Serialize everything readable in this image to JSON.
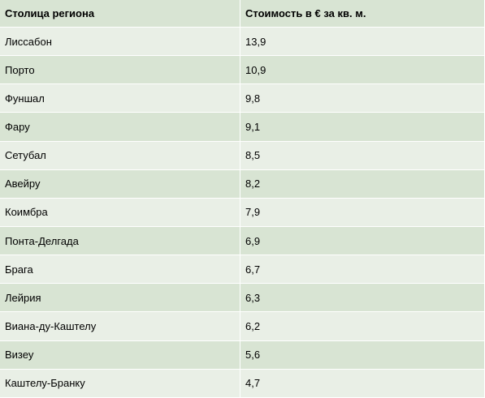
{
  "table": {
    "headers": [
      "Столица региона",
      "Стоимость в € за кв. м."
    ],
    "rows": [
      {
        "city": "Лиссабон",
        "price": "13,9"
      },
      {
        "city": "Порто",
        "price": "10,9"
      },
      {
        "city": "Фуншал",
        "price": "9,8"
      },
      {
        "city": "Фару",
        "price": "9,1"
      },
      {
        "city": "Сетубал",
        "price": "8,5"
      },
      {
        "city": "Авейру",
        "price": "8,2"
      },
      {
        "city": "Коимбра",
        "price": "7,9"
      },
      {
        "city": "Понта-Делгада",
        "price": "6,9"
      },
      {
        "city": "Брага",
        "price": "6,7"
      },
      {
        "city": "Лейрия",
        "price": "6,3"
      },
      {
        "city": "Виана-ду-Каштелу",
        "price": "6,2"
      },
      {
        "city": "Визеу",
        "price": "5,6"
      },
      {
        "city": "Каштелу-Бранку",
        "price": "4,7"
      }
    ]
  }
}
